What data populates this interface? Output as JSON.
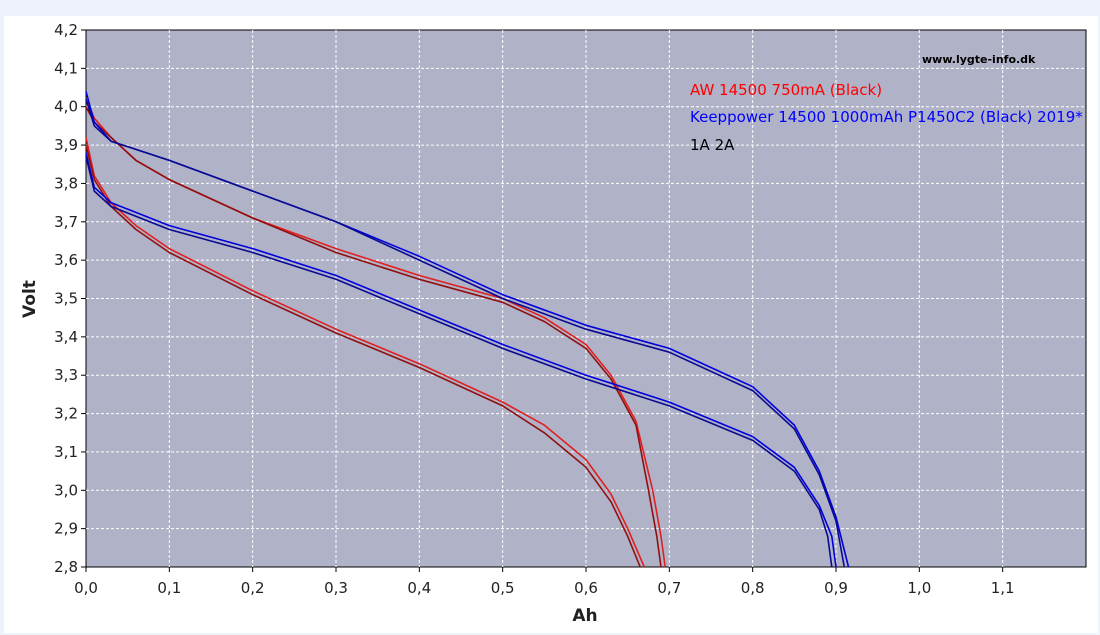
{
  "chart_data": {
    "type": "line",
    "xlabel": "Ah",
    "ylabel": "Volt",
    "xlim": [
      0.0,
      1.2
    ],
    "ylim": [
      2.8,
      4.2
    ],
    "grid": true,
    "x_ticks": [
      "0,0",
      "0,1",
      "0,2",
      "0,3",
      "0,4",
      "0,5",
      "0,6",
      "0,7",
      "0,8",
      "0,9",
      "1,0",
      "1,1"
    ],
    "y_ticks": [
      "2,8",
      "2,9",
      "3,0",
      "3,1",
      "3,2",
      "3,3",
      "3,4",
      "3,5",
      "3,6",
      "3,7",
      "3,8",
      "3,9",
      "4,0",
      "4,1",
      "4,2"
    ],
    "watermark": "www.lygte-info.dk",
    "legend_position": "top-right",
    "legend": [
      {
        "text": "AW 14500 750mA (Black)",
        "color": "#ff0000"
      },
      {
        "text": "Keeppower 14500 1000mAh P1450C2 (Black) 2019*",
        "color": "#0000ff"
      },
      {
        "text": "1A   2A",
        "color": "#000000"
      }
    ],
    "series": [
      {
        "color": "#e02020",
        "points": [
          [
            0.0,
            4.02
          ],
          [
            0.01,
            3.97
          ],
          [
            0.03,
            3.92
          ],
          [
            0.06,
            3.86
          ],
          [
            0.1,
            3.81
          ],
          [
            0.2,
            3.71
          ],
          [
            0.3,
            3.63
          ],
          [
            0.4,
            3.56
          ],
          [
            0.5,
            3.5
          ],
          [
            0.55,
            3.45
          ],
          [
            0.6,
            3.38
          ],
          [
            0.63,
            3.3
          ],
          [
            0.66,
            3.18
          ],
          [
            0.68,
            3.0
          ],
          [
            0.69,
            2.88
          ],
          [
            0.695,
            2.8
          ]
        ]
      },
      {
        "color": "#901010",
        "points": [
          [
            0.0,
            4.0
          ],
          [
            0.01,
            3.96
          ],
          [
            0.03,
            3.92
          ],
          [
            0.06,
            3.86
          ],
          [
            0.1,
            3.81
          ],
          [
            0.2,
            3.71
          ],
          [
            0.3,
            3.62
          ],
          [
            0.4,
            3.55
          ],
          [
            0.5,
            3.49
          ],
          [
            0.55,
            3.44
          ],
          [
            0.6,
            3.37
          ],
          [
            0.63,
            3.29
          ],
          [
            0.66,
            3.17
          ],
          [
            0.675,
            3.0
          ],
          [
            0.685,
            2.88
          ],
          [
            0.69,
            2.8
          ]
        ]
      },
      {
        "color": "#e02020",
        "points": [
          [
            0.0,
            3.92
          ],
          [
            0.01,
            3.82
          ],
          [
            0.03,
            3.75
          ],
          [
            0.06,
            3.69
          ],
          [
            0.1,
            3.63
          ],
          [
            0.2,
            3.52
          ],
          [
            0.3,
            3.42
          ],
          [
            0.4,
            3.33
          ],
          [
            0.5,
            3.23
          ],
          [
            0.55,
            3.17
          ],
          [
            0.6,
            3.08
          ],
          [
            0.63,
            2.99
          ],
          [
            0.65,
            2.9
          ],
          [
            0.67,
            2.8
          ]
        ]
      },
      {
        "color": "#901010",
        "points": [
          [
            0.0,
            3.9
          ],
          [
            0.01,
            3.81
          ],
          [
            0.03,
            3.74
          ],
          [
            0.06,
            3.68
          ],
          [
            0.1,
            3.62
          ],
          [
            0.2,
            3.51
          ],
          [
            0.3,
            3.41
          ],
          [
            0.4,
            3.32
          ],
          [
            0.5,
            3.22
          ],
          [
            0.55,
            3.15
          ],
          [
            0.6,
            3.06
          ],
          [
            0.63,
            2.97
          ],
          [
            0.65,
            2.88
          ],
          [
            0.665,
            2.8
          ]
        ]
      },
      {
        "color": "#0000dd",
        "points": [
          [
            0.0,
            4.04
          ],
          [
            0.01,
            3.96
          ],
          [
            0.03,
            3.91
          ],
          [
            0.1,
            3.86
          ],
          [
            0.2,
            3.78
          ],
          [
            0.3,
            3.7
          ],
          [
            0.4,
            3.61
          ],
          [
            0.5,
            3.51
          ],
          [
            0.6,
            3.43
          ],
          [
            0.7,
            3.37
          ],
          [
            0.8,
            3.27
          ],
          [
            0.85,
            3.17
          ],
          [
            0.88,
            3.05
          ],
          [
            0.9,
            2.93
          ],
          [
            0.915,
            2.8
          ]
        ]
      },
      {
        "color": "#0a0a90",
        "points": [
          [
            0.0,
            4.02
          ],
          [
            0.01,
            3.95
          ],
          [
            0.03,
            3.91
          ],
          [
            0.1,
            3.86
          ],
          [
            0.2,
            3.78
          ],
          [
            0.3,
            3.7
          ],
          [
            0.4,
            3.6
          ],
          [
            0.5,
            3.5
          ],
          [
            0.6,
            3.42
          ],
          [
            0.7,
            3.36
          ],
          [
            0.8,
            3.26
          ],
          [
            0.85,
            3.16
          ],
          [
            0.88,
            3.04
          ],
          [
            0.9,
            2.92
          ],
          [
            0.91,
            2.8
          ]
        ]
      },
      {
        "color": "#0000dd",
        "points": [
          [
            0.0,
            3.88
          ],
          [
            0.01,
            3.79
          ],
          [
            0.03,
            3.75
          ],
          [
            0.1,
            3.69
          ],
          [
            0.2,
            3.63
          ],
          [
            0.3,
            3.56
          ],
          [
            0.4,
            3.47
          ],
          [
            0.5,
            3.38
          ],
          [
            0.6,
            3.3
          ],
          [
            0.7,
            3.23
          ],
          [
            0.8,
            3.14
          ],
          [
            0.85,
            3.06
          ],
          [
            0.88,
            2.96
          ],
          [
            0.895,
            2.88
          ],
          [
            0.9,
            2.8
          ]
        ]
      },
      {
        "color": "#0a0a90",
        "points": [
          [
            0.0,
            3.87
          ],
          [
            0.01,
            3.78
          ],
          [
            0.03,
            3.74
          ],
          [
            0.1,
            3.68
          ],
          [
            0.2,
            3.62
          ],
          [
            0.3,
            3.55
          ],
          [
            0.4,
            3.46
          ],
          [
            0.5,
            3.37
          ],
          [
            0.6,
            3.29
          ],
          [
            0.7,
            3.22
          ],
          [
            0.8,
            3.13
          ],
          [
            0.85,
            3.05
          ],
          [
            0.88,
            2.95
          ],
          [
            0.89,
            2.88
          ],
          [
            0.895,
            2.8
          ]
        ]
      }
    ]
  }
}
